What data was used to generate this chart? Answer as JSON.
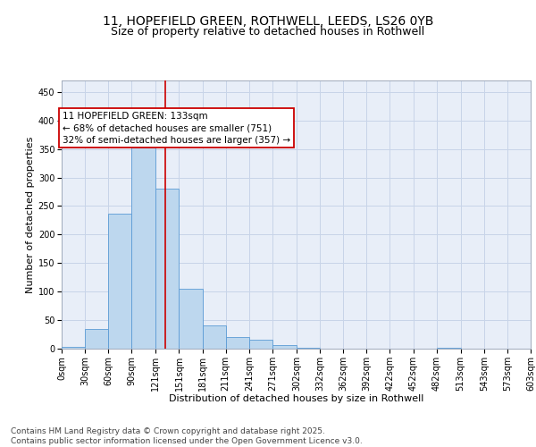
{
  "title_line1": "11, HOPEFIELD GREEN, ROTHWELL, LEEDS, LS26 0YB",
  "title_line2": "Size of property relative to detached houses in Rothwell",
  "xlabel": "Distribution of detached houses by size in Rothwell",
  "ylabel": "Number of detached properties",
  "bar_edges": [
    0,
    30,
    60,
    90,
    121,
    151,
    181,
    211,
    241,
    271,
    302,
    332,
    362,
    392,
    422,
    452,
    482,
    513,
    543,
    573,
    603
  ],
  "bar_heights": [
    3,
    35,
    236,
    365,
    281,
    105,
    40,
    21,
    15,
    7,
    2,
    0,
    0,
    0,
    0,
    0,
    1,
    0,
    0,
    0
  ],
  "bar_color": "#BDD7EE",
  "bar_edge_color": "#5B9BD5",
  "grid_color": "#C8D4E8",
  "background_color": "#E8EEF8",
  "vline_x": 133,
  "vline_color": "#CC0000",
  "annotation_text": "11 HOPEFIELD GREEN: 133sqm\n← 68% of detached houses are smaller (751)\n32% of semi-detached houses are larger (357) →",
  "annotation_box_color": "#CC0000",
  "ylim": [
    0,
    470
  ],
  "yticks": [
    0,
    50,
    100,
    150,
    200,
    250,
    300,
    350,
    400,
    450
  ],
  "tick_labels": [
    "0sqm",
    "30sqm",
    "60sqm",
    "90sqm",
    "121sqm",
    "151sqm",
    "181sqm",
    "211sqm",
    "241sqm",
    "271sqm",
    "302sqm",
    "332sqm",
    "362sqm",
    "392sqm",
    "422sqm",
    "452sqm",
    "482sqm",
    "513sqm",
    "543sqm",
    "573sqm",
    "603sqm"
  ],
  "footer_text": "Contains HM Land Registry data © Crown copyright and database right 2025.\nContains public sector information licensed under the Open Government Licence v3.0.",
  "title_fontsize": 10,
  "subtitle_fontsize": 9,
  "axis_label_fontsize": 8,
  "tick_fontsize": 7,
  "annotation_fontsize": 7.5,
  "footer_fontsize": 6.5
}
